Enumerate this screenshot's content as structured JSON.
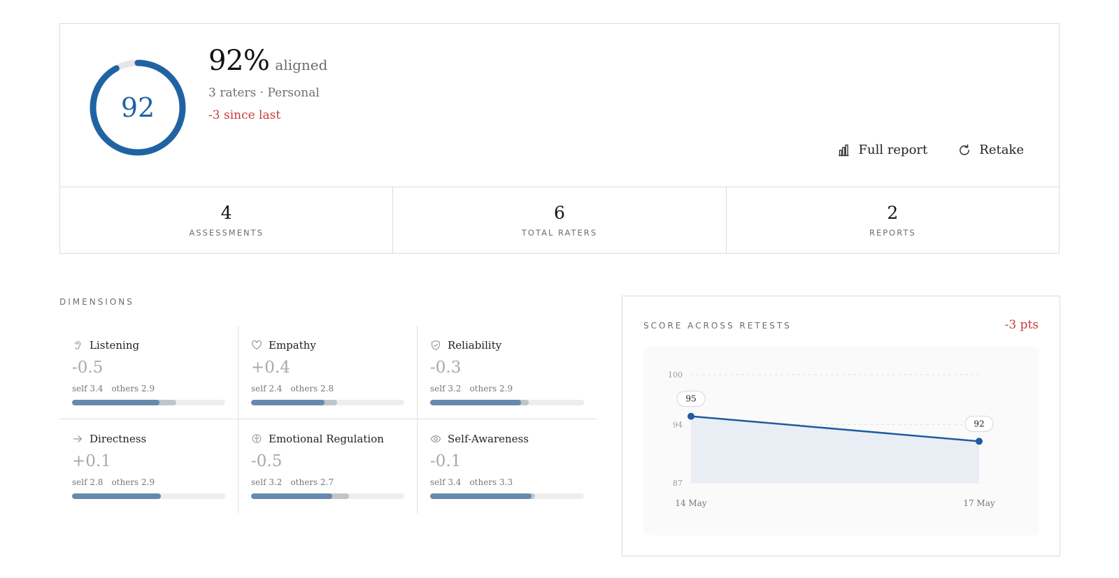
{
  "summary": {
    "score": "92",
    "score_fraction": 0.92,
    "headline_pct": "92%",
    "headline_suffix": "aligned",
    "subtitle": "3 raters · Personal",
    "delta": "-3 since last",
    "colors": {
      "accent": "#2063a3",
      "negative": "#c73b3b",
      "ring_track": "#e6e6e6"
    },
    "actions": {
      "full_report": {
        "label": "Full report",
        "icon": "bar-chart-icon"
      },
      "retake": {
        "label": "Retake",
        "icon": "refresh-icon"
      }
    }
  },
  "stats": [
    {
      "value": "4",
      "label": "ASSESSMENTS"
    },
    {
      "value": "6",
      "label": "TOTAL RATERS"
    },
    {
      "value": "2",
      "label": "REPORTS"
    }
  ],
  "dimensions": {
    "heading": "DIMENSIONS",
    "items": [
      {
        "name": "Listening",
        "icon": "ear-icon",
        "delta": "-0.5",
        "self": "self 3.4",
        "others": "others 2.9",
        "self_fill": 0.57,
        "others_fill": 0.68
      },
      {
        "name": "Empathy",
        "icon": "heart-icon",
        "delta": "+0.4",
        "self": "self 2.4",
        "others": "others 2.8",
        "self_fill": 0.48,
        "others_fill": 0.56
      },
      {
        "name": "Reliability",
        "icon": "shield-icon",
        "delta": "-0.3",
        "self": "self 3.2",
        "others": "others 2.9",
        "self_fill": 0.59,
        "others_fill": 0.64
      },
      {
        "name": "Directness",
        "icon": "arrow-right-icon",
        "delta": "+0.1",
        "self": "self 2.8",
        "others": "others 2.9",
        "self_fill": 0.58,
        "others_fill": 0.58
      },
      {
        "name": "Emotional Regulation",
        "icon": "brain-icon",
        "delta": "-0.5",
        "self": "self 3.2",
        "others": "others 2.7",
        "self_fill": 0.53,
        "others_fill": 0.64
      },
      {
        "name": "Self-Awareness",
        "icon": "eye-icon",
        "delta": "-0.1",
        "self": "self 3.4",
        "others": "others 3.3",
        "self_fill": 0.66,
        "others_fill": 0.68
      }
    ]
  },
  "chart": {
    "title": "SCORE ACROSS RETESTS",
    "delta": "-3 pts",
    "colors": {
      "line": "#1f5c9e",
      "fill": "#e9eef5",
      "grid": "#e2e2e2"
    }
  },
  "chart_data": {
    "type": "area",
    "title": "SCORE ACROSS RETESTS",
    "x": [
      "14 May",
      "17 May"
    ],
    "series": [
      {
        "values": [
          95,
          92
        ]
      }
    ],
    "data_labels": [
      "95",
      "92"
    ],
    "y_ticks": [
      100,
      94,
      87
    ],
    "ylim": [
      87,
      100
    ],
    "grid": true
  }
}
